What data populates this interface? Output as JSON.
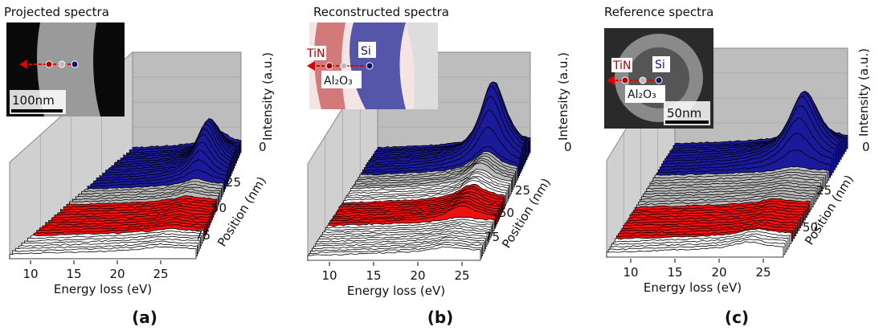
{
  "panels": [
    {
      "title": "Projected spectra",
      "inset": {
        "scale_bar": "100nm"
      },
      "x_label": "Energy loss (eV)",
      "x_ticks": [
        "10",
        "15",
        "20",
        "25"
      ],
      "position_label": "Position (nm)",
      "position_ticks": [
        "25",
        "50",
        "75"
      ],
      "intensity_label": "Intensity (a.u.)",
      "intensity_tick": "0",
      "caption": "(a)"
    },
    {
      "title": "Reconstructed spectra",
      "inset": {
        "tin": "TiN",
        "si": "Si",
        "al2o3": "Al₂O₃"
      },
      "x_label": "Energy loss (eV)",
      "x_ticks": [
        "10",
        "15",
        "20",
        "25"
      ],
      "position_label": "Position (nm)",
      "position_ticks": [
        "25",
        "50",
        "75"
      ],
      "intensity_label": "Intensity (a.u.)",
      "intensity_tick": "0",
      "caption": "(b)"
    },
    {
      "title": "Reference spectra",
      "inset": {
        "tin": "TiN",
        "si": "Si",
        "al2o3": "Al₂O₃",
        "scale_bar": "50nm"
      },
      "x_label": "Energy loss (eV)",
      "x_ticks": [
        "10",
        "15",
        "20",
        "25"
      ],
      "position_label": "Position (nm)",
      "position_ticks": [
        "25",
        "50"
      ],
      "intensity_label": "Intensity (a.u.)",
      "intensity_tick": "0",
      "caption": "(c)"
    }
  ]
}
